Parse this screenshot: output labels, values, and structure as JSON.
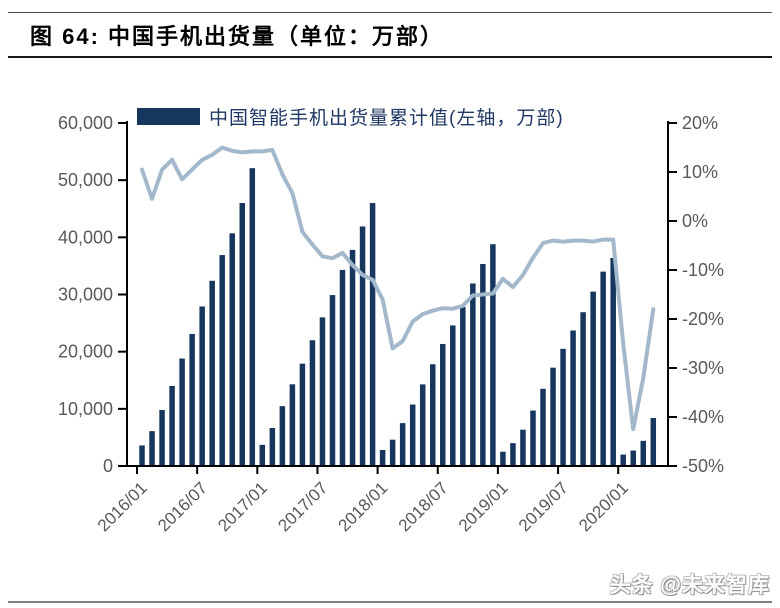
{
  "header": {
    "title": "图 64:  中国手机出货量（单位：万部）"
  },
  "legend": {
    "label": "中国智能手机出货量累计值(左轴，万部)"
  },
  "watermark": {
    "text": "头条 @未来智库"
  },
  "colors": {
    "bar": "#17365d",
    "line": "#a3b8cb",
    "axis": "#000000",
    "tick_text": "#595959",
    "legend_text": "#1f3864",
    "title_text": "#000000",
    "watermark_outline": "#8f8f8f"
  },
  "chart_data": {
    "type": "bar",
    "title": "中国手机出货量（单位：万部）",
    "grid": false,
    "legend_position": "top",
    "categories": [
      "2016/01",
      "2016/02",
      "2016/03",
      "2016/04",
      "2016/05",
      "2016/06",
      "2016/07",
      "2016/08",
      "2016/09",
      "2016/10",
      "2016/11",
      "2016/12",
      "2017/01",
      "2017/02",
      "2017/03",
      "2017/04",
      "2017/05",
      "2017/06",
      "2017/07",
      "2017/08",
      "2017/09",
      "2017/10",
      "2017/11",
      "2017/12",
      "2018/01",
      "2018/02",
      "2018/03",
      "2018/04",
      "2018/05",
      "2018/06",
      "2018/07",
      "2018/08",
      "2018/09",
      "2018/10",
      "2018/11",
      "2018/12",
      "2019/01",
      "2019/02",
      "2019/03",
      "2019/04",
      "2019/05",
      "2019/06",
      "2019/07",
      "2019/08",
      "2019/09",
      "2019/10",
      "2019/11",
      "2019/12",
      "2020/01",
      "2020/02",
      "2020/03",
      "2020/04"
    ],
    "series": [
      {
        "name": "中国智能手机出货量累计值(左轴，万部)",
        "type": "bar",
        "axis": "left",
        "values": [
          3600,
          6100,
          9800,
          14000,
          18800,
          23100,
          27900,
          32400,
          36900,
          40700,
          46000,
          52100,
          3700,
          6650,
          10460,
          14290,
          17900,
          22000,
          26000,
          29900,
          34300,
          37800,
          41900,
          46000,
          2800,
          4600,
          7500,
          10750,
          14280,
          17800,
          21350,
          24580,
          27800,
          31930,
          35340,
          38800,
          2500,
          4000,
          6350,
          9700,
          13500,
          17200,
          20500,
          23700,
          26900,
          30500,
          34000,
          36400,
          2000,
          2700,
          4400,
          8400
        ]
      },
      {
        "name": "",
        "type": "line",
        "axis": "right",
        "values": [
          10.5,
          4.5,
          10.5,
          12.5,
          8.5,
          10.5,
          12.5,
          13.5,
          15,
          14.3,
          14,
          14.2,
          14.2,
          14.5,
          9.5,
          5.7,
          -2.2,
          -4.8,
          -7.2,
          -7.6,
          -6.5,
          -9,
          -11,
          -12,
          -16,
          -26,
          -24.5,
          -20.5,
          -19,
          -18.3,
          -17.8,
          -17.9,
          -17.3,
          -15.2,
          -15,
          -14.8,
          -11.8,
          -13.5,
          -11,
          -7.5,
          -4.5,
          -4,
          -4.2,
          -4,
          -4,
          -4.2,
          -3.8,
          -3.8,
          -25,
          -42.5,
          -32,
          -18
        ]
      }
    ],
    "left_axis": {
      "min": 0,
      "max": 60000,
      "step": 10000,
      "tick_labels": [
        "60,000",
        "50,000",
        "40,000",
        "30,000",
        "20,000",
        "10,000",
        "0"
      ]
    },
    "right_axis": {
      "min": -50,
      "max": 20,
      "step": 10,
      "tick_labels": [
        "20%",
        "10%",
        "0%",
        "-10%",
        "-20%",
        "-30%",
        "-40%",
        "-50%"
      ]
    },
    "x_tick_labels": [
      "2016/01",
      "2016/07",
      "2017/01",
      "2017/07",
      "2018/01",
      "2018/07",
      "2019/01",
      "2019/07",
      "2020/01"
    ],
    "x_label_every_n_months": 6
  }
}
